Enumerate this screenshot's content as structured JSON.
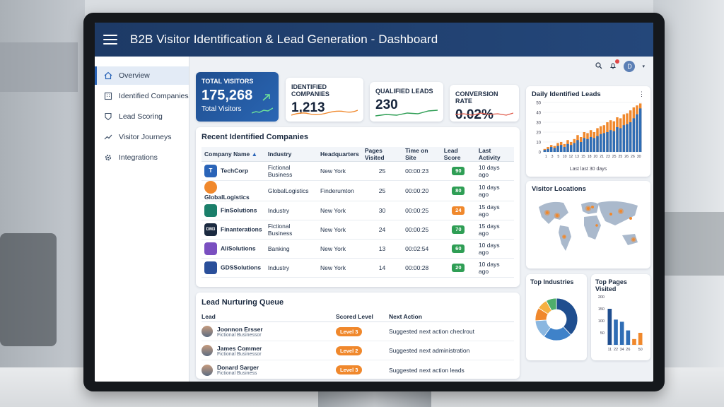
{
  "header": {
    "title": "B2B Visitor Identification & Lead Generation - Dashboard"
  },
  "sidebar": {
    "items": [
      {
        "label": "Overview",
        "icon": "home-icon",
        "active": true
      },
      {
        "label": "Identified Companies",
        "icon": "building-icon",
        "active": false
      },
      {
        "label": "Lead Scoring",
        "icon": "badge-icon",
        "active": false
      },
      {
        "label": "Visitor Journeys",
        "icon": "trend-icon",
        "active": false
      },
      {
        "label": "Integrations",
        "icon": "gear-icon",
        "active": false
      }
    ]
  },
  "kpis": [
    {
      "title": "TOTAL VISITORS",
      "value": "175,268",
      "sub": "Total Visitors"
    },
    {
      "title": "IDENTIFIED COMPANIES",
      "value": "1,213"
    },
    {
      "title": "QUALIFIED LEADS",
      "value": "230"
    },
    {
      "title": "CONVERSION RATE",
      "value": "0.02%"
    }
  ],
  "companies": {
    "title": "Recent Identified Companies",
    "columns": [
      "Company Name",
      "Industry",
      "Headquarters",
      "Pages Visited",
      "Time on Site",
      "Lead Score",
      "Last Activity"
    ],
    "rows": [
      {
        "name": "TechCorp",
        "industry": "Fictional Business",
        "hq": "New York",
        "pages": "25",
        "time": "00:00:23",
        "score": "90",
        "activity": "10 days ago"
      },
      {
        "name": "GlobalLogistics",
        "industry": "GlobalLogistics",
        "hq": "Finderumton",
        "pages": "25",
        "time": "00:00:20",
        "score": "80",
        "activity": "10 days ago"
      },
      {
        "name": "FinSolutions",
        "industry": "Industry",
        "hq": "New York",
        "pages": "30",
        "time": "00:00:25",
        "score": "24",
        "activity": "15 days ago"
      },
      {
        "name": "Finanterations",
        "industry": "Fictional Business",
        "hq": "New York",
        "pages": "24",
        "time": "00:00:25",
        "score": "70",
        "activity": "15 days ago"
      },
      {
        "name": "AliSolutions",
        "industry": "Banking",
        "hq": "New York",
        "pages": "13",
        "time": "00:02:54",
        "score": "60",
        "activity": "10 days ago"
      },
      {
        "name": "GDSSolutions",
        "industry": "Industry",
        "hq": "New York",
        "pages": "14",
        "time": "00:00:28",
        "score": "20",
        "activity": "10 days ago"
      }
    ],
    "logos": [
      "T",
      "",
      "",
      "DM3",
      "",
      ""
    ]
  },
  "nurturing": {
    "title": "Lead Nurturing Queue",
    "col_lead": "Lead",
    "col_level": "Scored Level",
    "col_action": "Next Action",
    "rows": [
      {
        "name": "Joonnon Ersser",
        "company": "Fictional Businessor",
        "level": "Level 3",
        "action": "Suggested next action checlrout"
      },
      {
        "name": "James Commer",
        "company": "Fictional Businessor",
        "level": "Level 2",
        "action": "Suggested next administration"
      },
      {
        "name": "Donard Sarger",
        "company": "Fictional Business",
        "level": "Level 3",
        "action": "Suggested next action leads"
      }
    ]
  },
  "daily": {
    "title": "Daily Identified Leads",
    "footer": "Last last 30 days"
  },
  "locations": {
    "title": "Visitor Locations"
  },
  "industries": {
    "title": "Top Industries"
  },
  "pages": {
    "title": "Top Pages Visited"
  },
  "colors": {
    "primary": "#1f4e8f",
    "orange": "#f0882c",
    "green": "#2f9e55",
    "navy": "#1d3a66"
  },
  "chart_data": [
    {
      "type": "bar",
      "title": "Daily Identified Leads",
      "xlabel": "Last last 30 days",
      "ylabel": "",
      "ylim": [
        0,
        50
      ],
      "yticks": [
        0,
        10,
        20,
        30,
        40,
        50
      ],
      "categories": [
        "1",
        "2",
        "3",
        "4",
        "5",
        "6",
        "7",
        "8",
        "9",
        "10",
        "11",
        "12",
        "13",
        "14",
        "15",
        "16",
        "17",
        "18",
        "19",
        "20",
        "21",
        "22",
        "23",
        "24",
        "25",
        "26",
        "27",
        "28",
        "29",
        "30"
      ],
      "xticks": [
        "1",
        "3",
        "5",
        "10",
        "12",
        "13",
        "15",
        "18",
        "20",
        "21",
        "23",
        "25",
        "25",
        "26",
        "26",
        "30"
      ],
      "series": [
        {
          "values": [
            2,
            3,
            5,
            4,
            6,
            7,
            5,
            8,
            7,
            9,
            12,
            10,
            14,
            13,
            15,
            14,
            16,
            18,
            19,
            20,
            22,
            21,
            25,
            24,
            27,
            28,
            30,
            34,
            38,
            44
          ]
        },
        {
          "values": [
            3,
            5,
            7,
            6,
            9,
            10,
            8,
            12,
            10,
            13,
            17,
            15,
            20,
            19,
            22,
            20,
            24,
            26,
            27,
            30,
            32,
            31,
            35,
            34,
            38,
            39,
            42,
            45,
            47,
            49
          ]
        }
      ],
      "colors": [
        "#2f6db5",
        "#f0882c"
      ]
    },
    {
      "type": "pie",
      "title": "Top Industries",
      "values": [
        38,
        22,
        14,
        10,
        8,
        8
      ],
      "colors": [
        "#1f4e8f",
        "#3f82c9",
        "#8bb7e0",
        "#f0882c",
        "#f5b041",
        "#4fae6b"
      ]
    },
    {
      "type": "bar",
      "title": "Top Pages Visited",
      "categories": [
        "11",
        "22",
        "34",
        "26",
        "",
        "50"
      ],
      "values": [
        150,
        105,
        96,
        60,
        24,
        50
      ],
      "ylim": [
        0,
        200
      ],
      "yticks": [
        0,
        50,
        100,
        150,
        200
      ],
      "colors": [
        "#1f4e8f",
        "#2f6db5",
        "#2f6db5",
        "#2f6db5",
        "#f0882c",
        "#f0882c"
      ]
    }
  ]
}
